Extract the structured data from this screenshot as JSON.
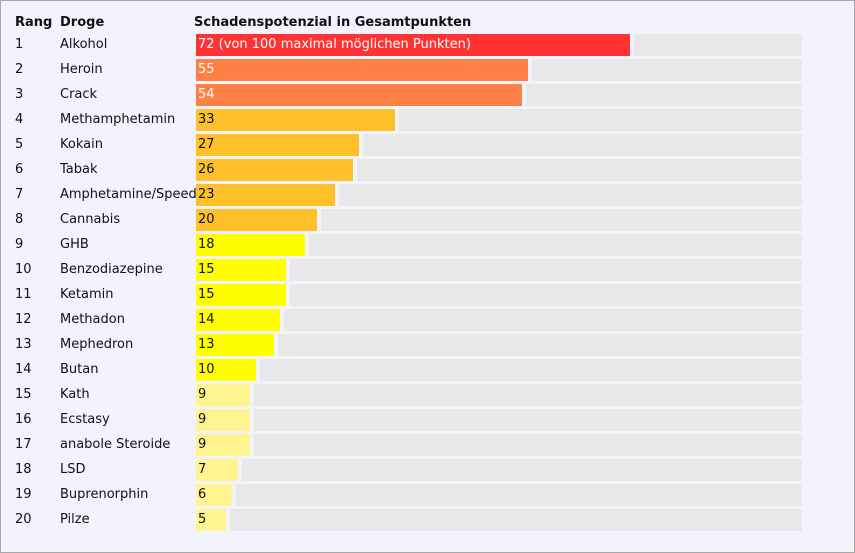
{
  "headers": {
    "rank": "Rang",
    "drug": "Droge",
    "score": "Schadenspotenzial in Gesamtpunkten"
  },
  "first_label_suffix": " (von 100 maximal möglichen Punkten)",
  "chart_data": {
    "type": "bar",
    "orientation": "horizontal",
    "title": "Schadenspotenzial in Gesamtpunkten",
    "xlim": [
      0,
      100
    ],
    "ranks": [
      1,
      2,
      3,
      4,
      5,
      6,
      7,
      8,
      9,
      10,
      11,
      12,
      13,
      14,
      15,
      16,
      17,
      18,
      19,
      20
    ],
    "categories": [
      "Alkohol",
      "Heroin",
      "Crack",
      "Methamphetamin",
      "Kokain",
      "Tabak",
      "Amphetamine/Speed",
      "Cannabis",
      "GHB",
      "Benzodiazepine",
      "Ketamin",
      "Methadon",
      "Mephedron",
      "Butan",
      "Kath",
      "Ecstasy",
      "anabole Steroide",
      "LSD",
      "Buprenorphin",
      "Pilze"
    ],
    "values": [
      72,
      55,
      54,
      33,
      27,
      26,
      23,
      20,
      18,
      15,
      15,
      14,
      13,
      10,
      9,
      9,
      9,
      7,
      6,
      5
    ],
    "labels": [
      "72 (von 100 maximal möglichen Punkten)",
      "55",
      "54",
      "33",
      "27",
      "26",
      "23",
      "20",
      "18",
      "15",
      "15",
      "14",
      "13",
      "10",
      "9",
      "9",
      "9",
      "7",
      "6",
      "5"
    ]
  },
  "colors": {
    "track": "#e8e8e8",
    "red": "#ff3333",
    "orange": "#ff8044",
    "amber": "#ffc02a",
    "yellow": "#ffff00",
    "pale": "#fff590"
  }
}
